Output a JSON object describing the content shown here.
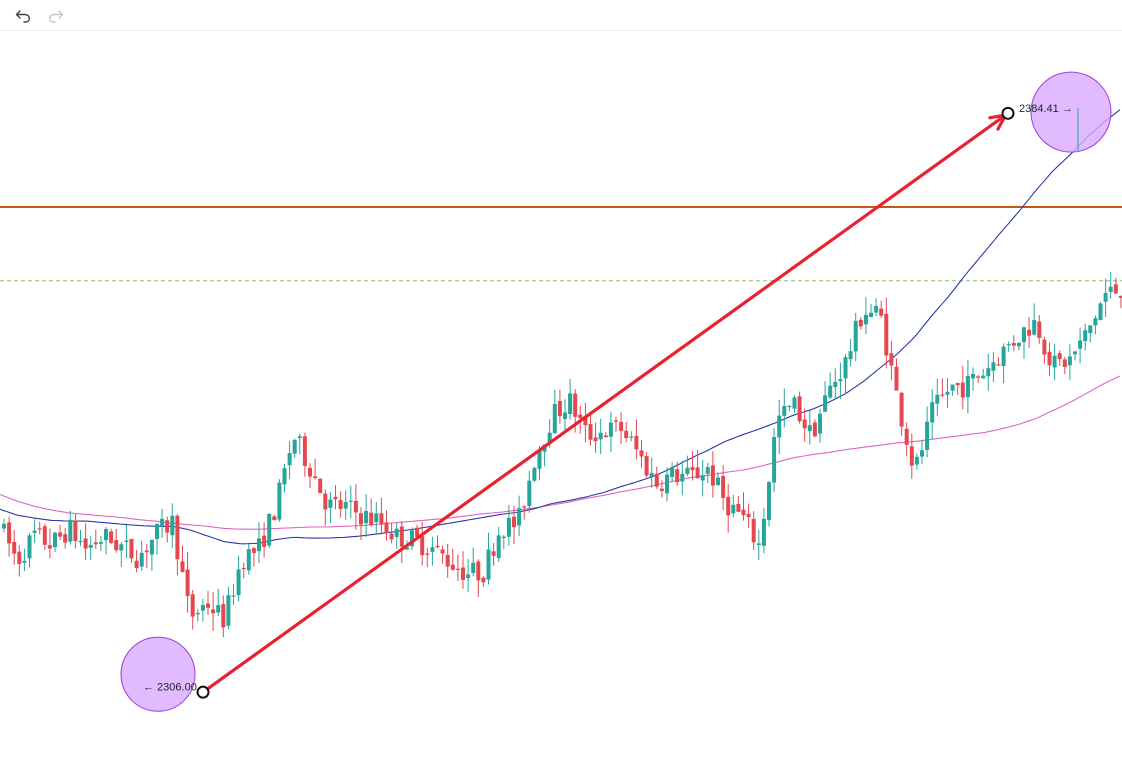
{
  "toolbar": {
    "undo_icon": "undo-arrow-icon",
    "redo_icon": "redo-arrow-icon"
  },
  "chart_data": {
    "type": "candlestick",
    "ylim": [
      2296,
      2395
    ],
    "grid": false,
    "colors": {
      "up": "#26a69a",
      "down": "#e5474f",
      "ma_fast": "#2b3aa3",
      "ma_slow": "#e066c4",
      "resistance": "#c8570f",
      "support": "#8bbf6b",
      "arrow": "#e8232f",
      "highlight_fill": "#d9a9ff",
      "highlight_stroke": "#9b3fd6"
    },
    "horizontal_lines": [
      {
        "kind": "solid",
        "price": 2371.0
      },
      {
        "kind": "dashed",
        "price": 2361.0
      }
    ],
    "annotations": {
      "low_label": "← 2306.00",
      "low_price": 2306.0,
      "high_label": "2384.41 →",
      "high_price": 2384.41,
      "arrow": {
        "from_price": 2305.2,
        "to_price": 2383.7
      }
    },
    "anchors": [
      2327.8,
      2323.0,
      2326.5,
      2325.2,
      2327.4,
      2324.7,
      2326.3,
      2325.0,
      2323.5,
      2326.5,
      2328.3,
      2315.4,
      2317.3,
      2315.0,
      2323.3,
      2324.7,
      2330.4,
      2340.0,
      2335.6,
      2330.5,
      2330.3,
      2329.2,
      2328.3,
      2326.3,
      2325.8,
      2324.8,
      2323.0,
      2321.4,
      2321.5,
      2327.7,
      2328.0,
      2337.2,
      2342.7,
      2344.7,
      2340.0,
      2340.6,
      2341.0,
      2337.5,
      2333.5,
      2334.7,
      2334.4,
      2335.6,
      2331.0,
      2329.0,
      2325.0,
      2342.0,
      2344.2,
      2340.0,
      2346.0,
      2350.0,
      2357.0,
      2356.4,
      2344.8,
      2335.0,
      2343.0,
      2346.5,
      2346.8,
      2348.8,
      2351.2,
      2353.5,
      2355.6,
      2349.4,
      2350.3,
      2353.9,
      2359.1,
      2360.0
    ],
    "ma_fast": [
      2330.0,
      2329.2,
      2328.8,
      2328.5,
      2328.4,
      2328.4,
      2328.2,
      2328.0,
      2327.8,
      2327.7,
      2327.7,
      2327.2,
      2326.4,
      2325.6,
      2325.3,
      2325.4,
      2325.9,
      2326.2,
      2326.1,
      2326.1,
      2326.2,
      2326.4,
      2326.7,
      2327.0,
      2327.3,
      2327.7,
      2328.1,
      2328.5,
      2328.9,
      2329.3,
      2329.6,
      2330.1,
      2330.8,
      2331.2,
      2331.7,
      2332.3,
      2333.1,
      2333.8,
      2334.6,
      2335.7,
      2336.9,
      2338.0,
      2339.2,
      2340.1,
      2340.9,
      2341.8,
      2342.8,
      2343.5,
      2344.5,
      2345.7,
      2347.3,
      2349.2,
      2351.1,
      2353.4,
      2356.3,
      2359.0,
      2362.0,
      2364.8,
      2367.6,
      2370.3,
      2373.2,
      2375.9,
      2378.1,
      2380.5,
      2382.6,
      2384.4
    ],
    "ma_slow": [
      2332.0,
      2331.1,
      2330.4,
      2329.9,
      2329.5,
      2329.3,
      2329.1,
      2328.9,
      2328.6,
      2328.4,
      2328.1,
      2327.9,
      2327.7,
      2327.4,
      2327.3,
      2327.3,
      2327.4,
      2327.5,
      2327.6,
      2327.6,
      2327.7,
      2327.8,
      2328.0,
      2328.2,
      2328.4,
      2328.6,
      2328.8,
      2329.1,
      2329.4,
      2329.6,
      2329.9,
      2330.2,
      2330.6,
      2331.0,
      2331.5,
      2331.9,
      2332.4,
      2332.8,
      2333.3,
      2333.8,
      2334.3,
      2334.6,
      2335.0,
      2335.3,
      2335.8,
      2336.4,
      2337.0,
      2337.4,
      2337.7,
      2338.1,
      2338.4,
      2338.7,
      2339.0,
      2339.2,
      2339.5,
      2339.8,
      2340.1,
      2340.4,
      2340.9,
      2341.5,
      2342.3,
      2343.4,
      2344.5,
      2345.8,
      2347.1,
      2348.2
    ]
  }
}
